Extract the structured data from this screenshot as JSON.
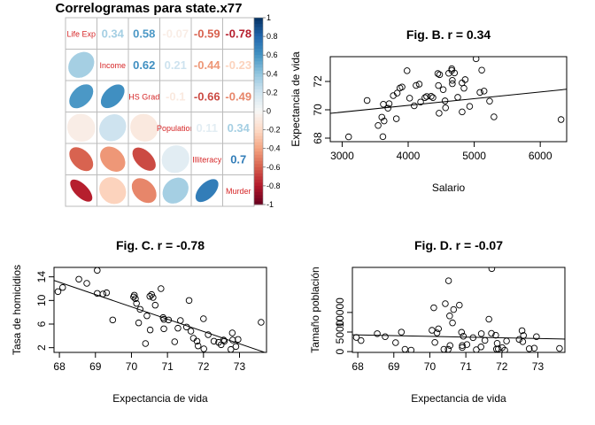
{
  "chart_data": [
    {
      "type": "heatmap",
      "title": "Correlogramas para state.x77",
      "variables": [
        "Life Exp",
        "Income",
        "HS Grad",
        "Population",
        "Illiteracy",
        "Murder"
      ],
      "matrix": [
        [
          1.0,
          0.34,
          0.58,
          -0.07,
          -0.59,
          -0.78
        ],
        [
          0.34,
          1.0,
          0.62,
          0.21,
          -0.44,
          -0.23
        ],
        [
          0.58,
          0.62,
          1.0,
          -0.1,
          -0.66,
          -0.49
        ],
        [
          -0.07,
          0.21,
          -0.1,
          1.0,
          0.11,
          0.34
        ],
        [
          -0.59,
          -0.44,
          -0.66,
          0.11,
          1.0,
          0.7
        ],
        [
          -0.78,
          -0.23,
          -0.49,
          0.34,
          0.7,
          1.0
        ]
      ],
      "upper_labels": [
        [
          "0.34",
          "0.58",
          "-0.07",
          "-0.59",
          "-0.78"
        ],
        [
          "0.62",
          "0.21",
          "-0.44",
          "-0.23"
        ],
        [
          "-0.1",
          "-0.66",
          "-0.49"
        ],
        [
          "0.11",
          "0.34"
        ],
        [
          "0.7"
        ]
      ],
      "colorbar": {
        "ticks": [
          "1",
          "0.8",
          "0.6",
          "0.4",
          "0.2",
          "0",
          "-0.2",
          "-0.4",
          "-0.6",
          "-0.8",
          "-1"
        ],
        "range": [
          -1,
          1
        ]
      },
      "colors": {
        "negative": "#67001f",
        "mid": "#f7f7f7",
        "positive": "#053061",
        "diag_text": "#d62728",
        "grid": "#bbbbbb"
      }
    },
    {
      "type": "scatter",
      "title": "Fig. B. r = 0.34",
      "xlabel": "Salario",
      "ylabel": "Expectancia de vida",
      "xlim": [
        2820,
        6400
      ],
      "ylim": [
        67.75,
        73.75
      ],
      "xticks": [
        3000,
        4000,
        5000,
        6000
      ],
      "yticks": [
        68,
        70,
        72
      ],
      "fit_line": {
        "x": [
          2820,
          6400
        ],
        "y": [
          69.75,
          71.45
        ]
      },
      "points": [
        [
          3098,
          68.09
        ],
        [
          3378,
          70.66
        ],
        [
          3545,
          68.89
        ],
        [
          3601,
          69.48
        ],
        [
          3617,
          68.1
        ],
        [
          3635,
          69.21
        ],
        [
          3624,
          70.39
        ],
        [
          3694,
          70.11
        ],
        [
          3712,
          70.43
        ],
        [
          3774,
          71.0
        ],
        [
          3821,
          69.37
        ],
        [
          3834,
          71.18
        ],
        [
          3875,
          71.54
        ],
        [
          3907,
          71.61
        ],
        [
          3983,
          72.76
        ],
        [
          4022,
          70.82
        ],
        [
          4091,
          70.28
        ],
        [
          4119,
          71.72
        ],
        [
          4167,
          71.81
        ],
        [
          4188,
          70.55
        ],
        [
          4254,
          70.86
        ],
        [
          4281,
          70.94
        ],
        [
          4347,
          70.95
        ],
        [
          4375,
          70.86
        ],
        [
          4449,
          72.56
        ],
        [
          4458,
          71.71
        ],
        [
          4468,
          69.76
        ],
        [
          4476,
          72.48
        ],
        [
          4530,
          71.42
        ],
        [
          4558,
          70.63
        ],
        [
          4566,
          70.14
        ],
        [
          4614,
          72.58
        ],
        [
          4660,
          72.78
        ],
        [
          4669,
          72.08
        ],
        [
          4701,
          72.6
        ],
        [
          4660,
          72.9
        ],
        [
          4669,
          71.84
        ],
        [
          4751,
          70.88
        ],
        [
          4815,
          71.9
        ],
        [
          4817,
          69.85
        ],
        [
          4863,
          72.13
        ],
        [
          4845,
          71.52
        ],
        [
          4931,
          70.24
        ],
        [
          5028,
          73.6
        ],
        [
          5087,
          71.23
        ],
        [
          5114,
          72.8
        ],
        [
          5149,
          71.32
        ],
        [
          5233,
          70.61
        ],
        [
          5299,
          69.5
        ],
        [
          6315,
          69.31
        ]
      ]
    },
    {
      "type": "scatter",
      "title": "Fig. C. r = -0.78",
      "xlabel": "Expectancia de vida",
      "ylabel": "Tasa de homicidios",
      "xlim": [
        67.85,
        73.75
      ],
      "ylim": [
        1.2,
        15.6
      ],
      "xticks": [
        68,
        69,
        70,
        71,
        72,
        73
      ],
      "yticks": [
        2,
        6,
        10,
        14
      ],
      "fit_line": {
        "x": [
          67.85,
          73.75
        ],
        "y": [
          13.4,
          1.1
        ]
      },
      "points": [
        [
          67.96,
          11.5
        ],
        [
          68.09,
          12.2
        ],
        [
          68.54,
          13.6
        ],
        [
          68.76,
          12.9
        ],
        [
          69.05,
          15.1
        ],
        [
          69.05,
          11.2
        ],
        [
          69.21,
          11.1
        ],
        [
          69.31,
          11.3
        ],
        [
          69.48,
          6.7
        ],
        [
          70.06,
          10.6
        ],
        [
          70.08,
          10.9
        ],
        [
          70.11,
          10.3
        ],
        [
          70.14,
          9.5
        ],
        [
          70.2,
          6.2
        ],
        [
          70.24,
          8.5
        ],
        [
          70.39,
          2.7
        ],
        [
          70.43,
          7.4
        ],
        [
          70.51,
          10.7
        ],
        [
          70.52,
          5.0
        ],
        [
          70.56,
          11.0
        ],
        [
          70.6,
          10.5
        ],
        [
          70.66,
          9.2
        ],
        [
          70.82,
          12.0
        ],
        [
          70.88,
          7.1
        ],
        [
          70.9,
          6.8
        ],
        [
          70.9,
          5.2
        ],
        [
          71.03,
          6.7
        ],
        [
          71.2,
          3.0
        ],
        [
          71.36,
          6.6
        ],
        [
          71.53,
          5.5
        ],
        [
          71.6,
          10.0
        ],
        [
          71.65,
          4.8
        ],
        [
          71.72,
          3.6
        ],
        [
          71.82,
          3.1
        ],
        [
          71.85,
          2.3
        ],
        [
          72.0,
          6.9
        ],
        [
          72.01,
          1.8
        ],
        [
          72.13,
          4.2
        ],
        [
          72.29,
          3.1
        ],
        [
          72.49,
          2.5
        ],
        [
          72.56,
          3.3
        ],
        [
          72.58,
          3.1
        ],
        [
          72.76,
          1.7
        ],
        [
          72.8,
          4.5
        ],
        [
          72.81,
          3.3
        ],
        [
          72.9,
          2.2
        ],
        [
          72.96,
          3.4
        ],
        [
          73.6,
          6.3
        ],
        [
          72.42,
          2.9
        ],
        [
          71.29,
          5.3
        ]
      ]
    },
    {
      "type": "scatter",
      "title": "Fig. D. r = -0.07",
      "xlabel": "Expectancia de vida",
      "ylabel": "Tamaño población",
      "xlim": [
        67.85,
        73.75
      ],
      "ylim": [
        -200,
        21500
      ],
      "xticks": [
        68,
        69,
        70,
        71,
        72,
        73
      ],
      "yticks": [
        0,
        5000,
        10000
      ],
      "fit_line": {
        "x": [
          67.85,
          73.75
        ],
        "y": [
          4300,
          3200
        ]
      },
      "points": [
        [
          67.96,
          3615
        ],
        [
          68.09,
          2816
        ],
        [
          68.54,
          4589
        ],
        [
          68.76,
          3806
        ],
        [
          69.05,
          2284
        ],
        [
          69.21,
          4981
        ],
        [
          69.31,
          587
        ],
        [
          69.48,
          376
        ],
        [
          70.06,
          5441
        ],
        [
          70.11,
          11197
        ],
        [
          70.14,
          2341
        ],
        [
          70.2,
          4767
        ],
        [
          70.24,
          5814
        ],
        [
          70.39,
          590
        ],
        [
          70.43,
          12237
        ],
        [
          70.51,
          579
        ],
        [
          70.52,
          18076
        ],
        [
          70.55,
          9111
        ],
        [
          70.56,
          1544
        ],
        [
          70.63,
          7333
        ],
        [
          70.66,
          10735
        ],
        [
          70.82,
          11860
        ],
        [
          70.88,
          4931
        ],
        [
          70.9,
          1058
        ],
        [
          70.93,
          3921
        ],
        [
          71.03,
          1799
        ],
        [
          71.2,
          3559
        ],
        [
          71.29,
          472
        ],
        [
          71.42,
          1203
        ],
        [
          71.53,
          2861
        ],
        [
          71.64,
          8277
        ],
        [
          71.72,
          21198
        ],
        [
          71.83,
          4173
        ],
        [
          71.85,
          637
        ],
        [
          71.87,
          2110
        ],
        [
          72.13,
          2715
        ],
        [
          72.48,
          3100
        ],
        [
          72.56,
          5348
        ],
        [
          72.58,
          2541
        ],
        [
          72.6,
          4122
        ],
        [
          72.76,
          746
        ],
        [
          72.9,
          868
        ],
        [
          72.96,
          3806
        ],
        [
          73.6,
          812
        ],
        [
          71.9,
          681
        ],
        [
          72.08,
          365
        ],
        [
          71.71,
          4663
        ],
        [
          72.01,
          1016
        ],
        [
          70.9,
          1544
        ],
        [
          71.43,
          4588
        ]
      ]
    }
  ]
}
